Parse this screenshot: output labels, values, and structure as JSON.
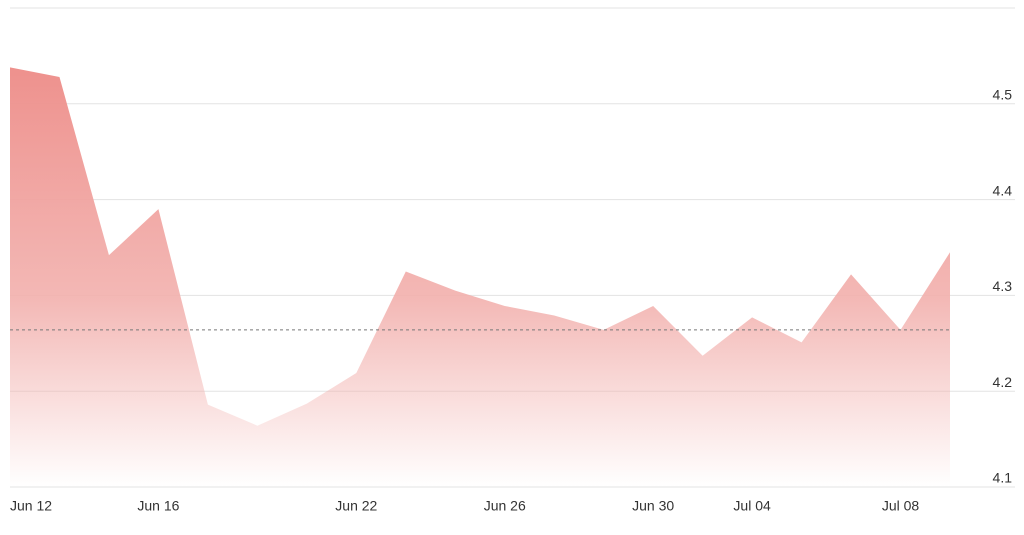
{
  "chart_data": {
    "type": "area",
    "categories": [
      "Jun 12",
      null,
      null,
      "Jun 16",
      null,
      null,
      null,
      "Jun 22",
      null,
      null,
      "Jun 26",
      null,
      null,
      "Jun 30",
      null,
      "Jul 04",
      null,
      null,
      "Jul 08",
      null
    ],
    "values": [
      4.538,
      4.528,
      4.342,
      4.39,
      4.186,
      4.164,
      4.187,
      4.219,
      4.325,
      4.305,
      4.289,
      4.279,
      4.264,
      4.289,
      4.237,
      4.277,
      4.251,
      4.322,
      4.264,
      4.345
    ],
    "color": "#f2b0ad",
    "ylim": [
      4.1,
      4.6
    ],
    "yticks": [
      4.1,
      4.2,
      4.3,
      4.4,
      4.5
    ],
    "reference_line": 4.264,
    "grid": true
  }
}
